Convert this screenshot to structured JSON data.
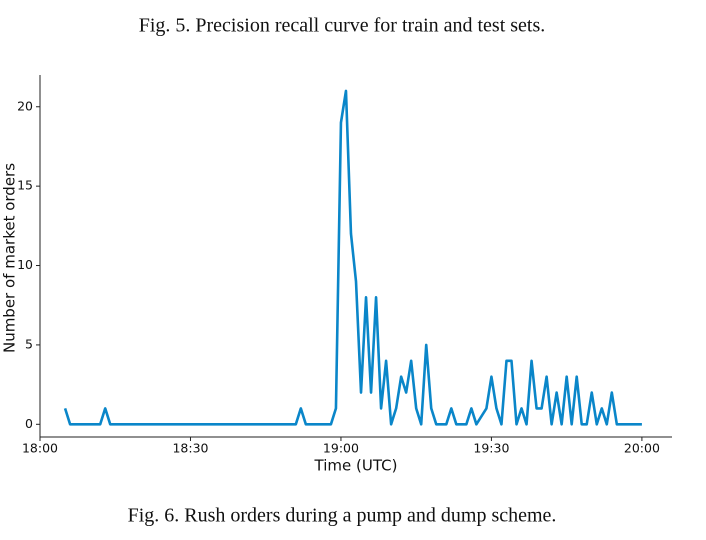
{
  "caption_above": "Fig. 5.  Precision recall curve for train and test sets.",
  "chart_data": {
    "type": "line",
    "xlabel": "Time (UTC)",
    "ylabel": "Number of market orders",
    "x": [
      "18:05",
      "18:06",
      "18:12",
      "18:13",
      "18:14",
      "18:51",
      "18:52",
      "18:53",
      "18:58",
      "18:59",
      "19:00",
      "19:01",
      "19:02",
      "19:03",
      "19:04",
      "19:05",
      "19:06",
      "19:07",
      "19:08",
      "19:09",
      "19:10",
      "19:11",
      "19:12",
      "19:13",
      "19:14",
      "19:15",
      "19:16",
      "19:17",
      "19:18",
      "19:19",
      "19:21",
      "19:22",
      "19:23",
      "19:25",
      "19:26",
      "19:27",
      "19:29",
      "19:30",
      "19:31",
      "19:32",
      "19:33",
      "19:34",
      "19:35",
      "19:36",
      "19:37",
      "19:38",
      "19:39",
      "19:40",
      "19:41",
      "19:42",
      "19:43",
      "19:44",
      "19:45",
      "19:46",
      "19:47",
      "19:48",
      "19:49",
      "19:50",
      "19:51",
      "19:52",
      "19:53",
      "19:54",
      "19:55",
      "19:56",
      "20:00"
    ],
    "series": [
      {
        "name": "Market orders",
        "color": "#0a86c9",
        "values": [
          1,
          0,
          0,
          1,
          0,
          0,
          1,
          0,
          0,
          1,
          19,
          21,
          12,
          9,
          2,
          8,
          2,
          8,
          1,
          4,
          0,
          1,
          3,
          2,
          4,
          1,
          0,
          5,
          1,
          0,
          0,
          1,
          0,
          0,
          1,
          0,
          1,
          3,
          1,
          0,
          4,
          4,
          0,
          1,
          0,
          4,
          1,
          1,
          3,
          0,
          2,
          0,
          3,
          0,
          3,
          0,
          0,
          2,
          0,
          1,
          0,
          2,
          0,
          0,
          0
        ]
      }
    ],
    "xlim": [
      "18:00",
      "20:06"
    ],
    "xticks": [
      "18:00",
      "18:30",
      "19:00",
      "19:30",
      "20:00"
    ],
    "ylim": [
      -0.8,
      22
    ],
    "yticks": [
      0,
      5,
      10,
      15,
      20
    ]
  },
  "caption_below": "Fig. 6.  Rush orders during a pump and dump scheme."
}
